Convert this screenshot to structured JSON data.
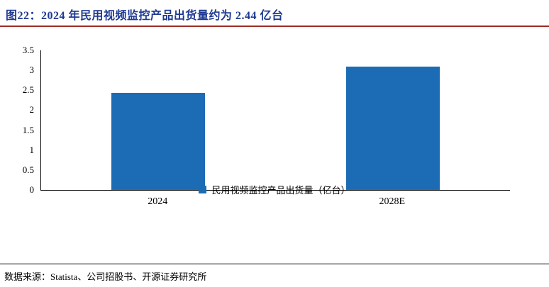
{
  "title": "图22：2024 年民用视频监控产品出货量约为 2.44 亿台",
  "source": "数据来源：Statista、公司招股书、开源证券研究所",
  "colors": {
    "title_blue": "#1f3a93",
    "title_rule_red": "#9e2b25",
    "bar_blue": "#1b6cb5"
  },
  "chart_data": {
    "type": "bar",
    "categories": [
      "2024",
      "2028E"
    ],
    "values": [
      2.44,
      3.1
    ],
    "title": "2024 年民用视频监控产品出货量约为 2.44 亿台",
    "xlabel": "",
    "ylabel": "",
    "ylim": [
      0,
      3.5
    ],
    "yticks": [
      0,
      0.5,
      1,
      1.5,
      2,
      2.5,
      3,
      3.5
    ],
    "grid": false,
    "legend": [
      "民用视频监控产品出货量（亿台）"
    ],
    "legend_position": "bottom"
  }
}
